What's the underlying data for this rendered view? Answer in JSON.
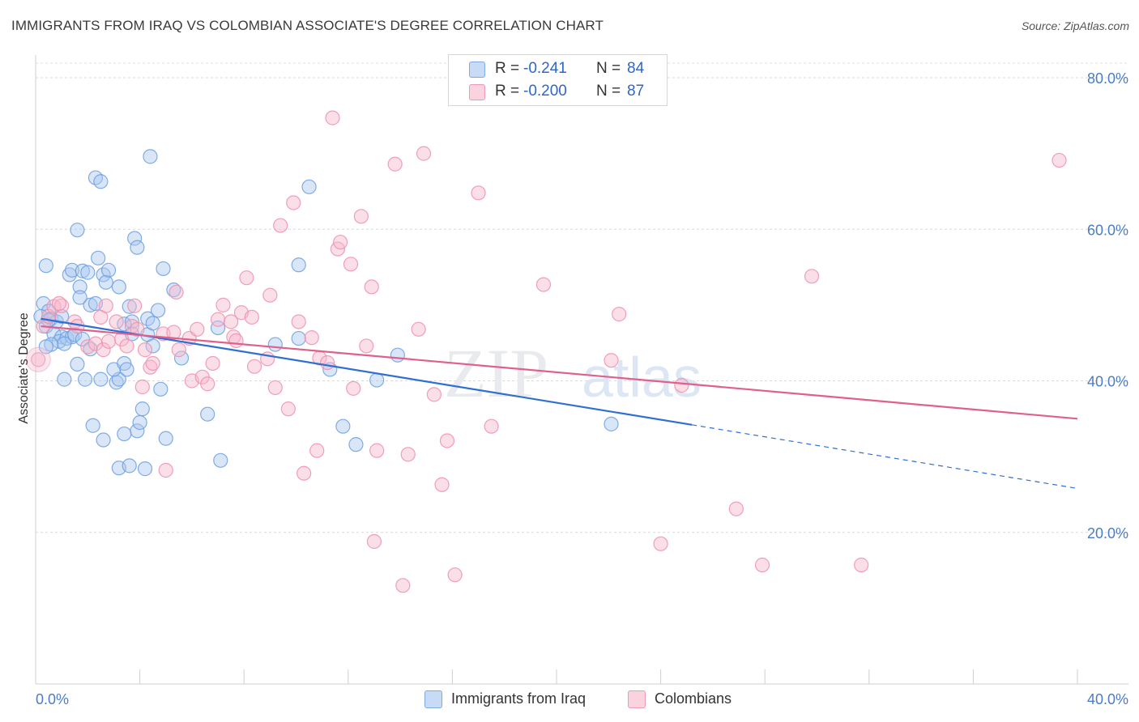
{
  "title": "IMMIGRANTS FROM IRAQ VS COLOMBIAN ASSOCIATE'S DEGREE CORRELATION CHART",
  "source": "Source: ZipAtlas.com",
  "watermark": {
    "zip": "ZIP",
    "atlas": "atlas"
  },
  "legend_top": {
    "rows": [
      {
        "r_label": "R =",
        "r_value": "-0.241",
        "n_label": "N =",
        "n_value": "84",
        "color": "#a9c8f0"
      },
      {
        "r_label": "R =",
        "r_value": "-0.200",
        "n_label": "N =",
        "n_value": "87",
        "color": "#f6b8cb"
      }
    ]
  },
  "legend_bottom": [
    {
      "label": "Immigrants from Iraq",
      "color": "#a9c8f0"
    },
    {
      "label": "Colombians",
      "color": "#f6b8cb"
    }
  ],
  "chart_data": {
    "type": "scatter",
    "title": "IMMIGRANTS FROM IRAQ VS COLOMBIAN ASSOCIATE'S DEGREE CORRELATION CHART",
    "xlabel": "",
    "ylabel": "Associate's Degree",
    "xlim": [
      0,
      40
    ],
    "ylim": [
      0,
      80
    ],
    "x_tick_labels": [
      "0.0%",
      "40.0%"
    ],
    "y_ticks": [
      20,
      40,
      60,
      80
    ],
    "y_tick_labels": [
      "20.0%",
      "40.0%",
      "60.0%",
      "80.0%"
    ],
    "grid": true,
    "legend_position": "top-center",
    "series": [
      {
        "name": "Immigrants from Iraq",
        "color": "#6d9fe0",
        "fill": "#a9c8f0",
        "trend": {
          "x0": 0.2,
          "y0": 48.2,
          "x1": 25.2,
          "y1": 34.2,
          "dash_to_x": 40,
          "dash_to_y": 25.8,
          "color": "#2f6fd4"
        },
        "points": [
          [
            0.4,
            55.2
          ],
          [
            0.3,
            50.2
          ],
          [
            0.5,
            49.2
          ],
          [
            0.2,
            48.5
          ],
          [
            0.6,
            48.2
          ],
          [
            0.8,
            47.8
          ],
          [
            0.4,
            47.2
          ],
          [
            0.7,
            46.2
          ],
          [
            1.0,
            45.8
          ],
          [
            0.9,
            45.2
          ],
          [
            1.2,
            45.6
          ],
          [
            1.4,
            45.8
          ],
          [
            0.6,
            44.8
          ],
          [
            1.1,
            44.9
          ],
          [
            0.4,
            44.5
          ],
          [
            1.5,
            46.1
          ],
          [
            1.8,
            45.5
          ],
          [
            2.1,
            44.2
          ],
          [
            1.6,
            42.2
          ],
          [
            1.1,
            40.2
          ],
          [
            1.9,
            40.2
          ],
          [
            2.1,
            50.0
          ],
          [
            2.3,
            50.2
          ],
          [
            1.3,
            54.0
          ],
          [
            1.7,
            52.4
          ],
          [
            1.4,
            54.6
          ],
          [
            1.8,
            54.5
          ],
          [
            2.0,
            54.3
          ],
          [
            2.4,
            56.2
          ],
          [
            2.6,
            54.0
          ],
          [
            2.7,
            53.0
          ],
          [
            2.8,
            54.6
          ],
          [
            3.2,
            52.4
          ],
          [
            1.7,
            51.0
          ],
          [
            2.2,
            34.1
          ],
          [
            2.6,
            32.2
          ],
          [
            2.5,
            40.2
          ],
          [
            3.1,
            39.8
          ],
          [
            3.2,
            40.2
          ],
          [
            3.0,
            41.5
          ],
          [
            3.4,
            42.3
          ],
          [
            3.5,
            41.5
          ],
          [
            3.4,
            47.5
          ],
          [
            3.7,
            47.8
          ],
          [
            3.6,
            49.8
          ],
          [
            3.7,
            46.2
          ],
          [
            4.3,
            46.1
          ],
          [
            4.5,
            44.6
          ],
          [
            4.3,
            48.2
          ],
          [
            4.7,
            49.3
          ],
          [
            4.5,
            47.6
          ],
          [
            3.8,
            58.8
          ],
          [
            3.9,
            57.6
          ],
          [
            4.9,
            54.8
          ],
          [
            5.3,
            52.0
          ],
          [
            4.4,
            69.6
          ],
          [
            2.3,
            66.8
          ],
          [
            2.5,
            66.3
          ],
          [
            1.6,
            59.9
          ],
          [
            3.2,
            28.5
          ],
          [
            3.6,
            28.8
          ],
          [
            4.2,
            28.4
          ],
          [
            3.9,
            33.4
          ],
          [
            4.0,
            34.5
          ],
          [
            4.1,
            36.3
          ],
          [
            4.8,
            38.9
          ],
          [
            5.0,
            32.4
          ],
          [
            3.4,
            33.0
          ],
          [
            5.6,
            43.0
          ],
          [
            6.6,
            35.6
          ],
          [
            7.1,
            29.5
          ],
          [
            7.0,
            47.0
          ],
          [
            9.2,
            44.8
          ],
          [
            10.1,
            45.6
          ],
          [
            10.1,
            55.3
          ],
          [
            10.5,
            65.6
          ],
          [
            11.3,
            41.5
          ],
          [
            11.8,
            34.0
          ],
          [
            12.3,
            31.6
          ],
          [
            13.1,
            40.1
          ],
          [
            13.9,
            43.4
          ],
          [
            22.1,
            34.3
          ],
          [
            0.5,
            48.0
          ],
          [
            1.0,
            48.5
          ]
        ]
      },
      {
        "name": "Colombians",
        "color": "#ee8fad",
        "fill": "#f6b8cb",
        "trend": {
          "x0": 0.2,
          "y0": 47.2,
          "x1": 40,
          "y1": 35.0,
          "color": "#e0608c"
        },
        "points": [
          [
            0.1,
            42.8
          ],
          [
            0.3,
            47.2
          ],
          [
            0.5,
            48.5
          ],
          [
            0.7,
            49.8
          ],
          [
            1.0,
            49.9
          ],
          [
            0.9,
            50.2
          ],
          [
            1.5,
            47.8
          ],
          [
            1.6,
            47.2
          ],
          [
            2.0,
            44.5
          ],
          [
            2.3,
            44.9
          ],
          [
            2.5,
            48.4
          ],
          [
            2.6,
            44.1
          ],
          [
            2.7,
            49.9
          ],
          [
            2.8,
            45.2
          ],
          [
            3.1,
            47.8
          ],
          [
            3.3,
            45.5
          ],
          [
            3.5,
            44.6
          ],
          [
            3.7,
            47.2
          ],
          [
            3.8,
            49.9
          ],
          [
            3.9,
            46.8
          ],
          [
            4.1,
            39.2
          ],
          [
            4.2,
            44.1
          ],
          [
            4.4,
            41.8
          ],
          [
            4.5,
            42.3
          ],
          [
            4.9,
            46.2
          ],
          [
            5.0,
            28.2
          ],
          [
            5.3,
            46.4
          ],
          [
            5.4,
            51.7
          ],
          [
            5.5,
            44.1
          ],
          [
            5.9,
            45.6
          ],
          [
            6.0,
            40.0
          ],
          [
            6.2,
            46.8
          ],
          [
            6.4,
            40.5
          ],
          [
            6.6,
            39.6
          ],
          [
            6.8,
            42.3
          ],
          [
            7.0,
            48.1
          ],
          [
            7.2,
            50.0
          ],
          [
            7.5,
            47.8
          ],
          [
            7.6,
            45.8
          ],
          [
            7.7,
            45.3
          ],
          [
            7.9,
            49.0
          ],
          [
            8.1,
            53.6
          ],
          [
            8.3,
            48.4
          ],
          [
            8.4,
            41.9
          ],
          [
            8.9,
            42.9
          ],
          [
            9.0,
            51.3
          ],
          [
            9.2,
            39.1
          ],
          [
            9.4,
            60.5
          ],
          [
            9.7,
            36.3
          ],
          [
            9.9,
            63.5
          ],
          [
            10.1,
            47.8
          ],
          [
            10.3,
            27.8
          ],
          [
            10.6,
            45.7
          ],
          [
            10.8,
            30.8
          ],
          [
            10.9,
            43.0
          ],
          [
            11.2,
            42.4
          ],
          [
            11.4,
            74.7
          ],
          [
            11.6,
            57.4
          ],
          [
            11.7,
            58.3
          ],
          [
            12.1,
            55.4
          ],
          [
            12.2,
            39.0
          ],
          [
            12.5,
            61.7
          ],
          [
            12.7,
            44.6
          ],
          [
            12.9,
            52.4
          ],
          [
            13.1,
            30.8
          ],
          [
            13.0,
            18.8
          ],
          [
            13.8,
            68.6
          ],
          [
            14.3,
            30.3
          ],
          [
            14.1,
            13.0
          ],
          [
            14.7,
            46.8
          ],
          [
            14.9,
            70.0
          ],
          [
            15.3,
            38.2
          ],
          [
            15.6,
            26.3
          ],
          [
            15.8,
            32.1
          ],
          [
            16.1,
            14.4
          ],
          [
            17.0,
            64.8
          ],
          [
            17.5,
            34.0
          ],
          [
            19.5,
            52.7
          ],
          [
            22.1,
            42.7
          ],
          [
            22.4,
            48.8
          ],
          [
            24.0,
            18.5
          ],
          [
            24.8,
            39.4
          ],
          [
            26.9,
            23.1
          ],
          [
            27.9,
            15.7
          ],
          [
            29.8,
            53.8
          ],
          [
            31.7,
            15.7
          ],
          [
            39.3,
            69.1
          ]
        ]
      }
    ]
  }
}
